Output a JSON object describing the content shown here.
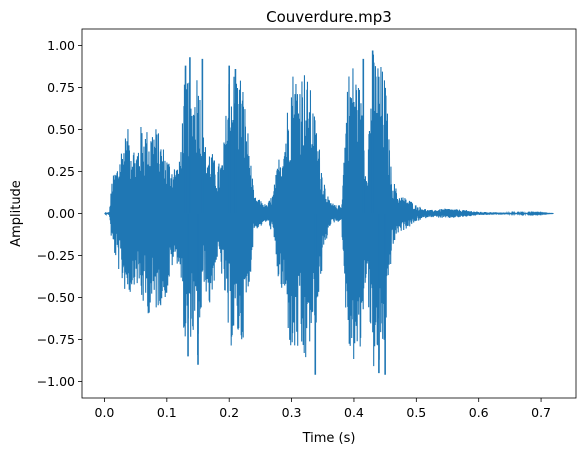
{
  "chart_data": {
    "type": "line",
    "title": "Couverdure.mp3",
    "xlabel": "Time (s)",
    "ylabel": "Amplitude",
    "xlim": [
      -0.036,
      0.756
    ],
    "ylim": [
      -1.098,
      1.098
    ],
    "x_ticks": [
      0.0,
      0.1,
      0.2,
      0.3,
      0.4,
      0.5,
      0.6,
      0.7
    ],
    "x_tick_labels": [
      "0.0",
      "0.1",
      "0.2",
      "0.3",
      "0.4",
      "0.5",
      "0.6",
      "0.7"
    ],
    "y_ticks": [
      -1.0,
      -0.75,
      -0.5,
      -0.25,
      0.0,
      0.25,
      0.5,
      0.75,
      1.0
    ],
    "y_tick_labels": [
      "−1.00",
      "−0.75",
      "−0.50",
      "−0.25",
      "0.00",
      "0.25",
      "0.50",
      "0.75",
      "1.00"
    ],
    "grid": false,
    "legend": "none",
    "series": [
      {
        "color": "#1f77b4",
        "x_start": 0.0,
        "x_end": 0.72,
        "envelope": {
          "t": [
            0.0,
            0.008,
            0.012,
            0.02,
            0.03,
            0.04,
            0.05,
            0.06,
            0.07,
            0.08,
            0.09,
            0.1,
            0.11,
            0.12,
            0.13,
            0.14,
            0.15,
            0.16,
            0.17,
            0.18,
            0.19,
            0.2,
            0.21,
            0.22,
            0.23,
            0.24,
            0.25,
            0.26,
            0.27,
            0.28,
            0.29,
            0.3,
            0.31,
            0.32,
            0.33,
            0.34,
            0.35,
            0.36,
            0.37,
            0.38,
            0.39,
            0.4,
            0.41,
            0.42,
            0.43,
            0.44,
            0.45,
            0.46,
            0.47,
            0.48,
            0.49,
            0.5,
            0.52,
            0.55,
            0.58,
            0.6,
            0.65,
            0.7,
            0.72
          ],
          "max": [
            0.0,
            0.01,
            0.2,
            0.3,
            0.45,
            0.52,
            0.38,
            0.55,
            0.5,
            0.55,
            0.45,
            0.35,
            0.3,
            0.3,
            0.88,
            0.7,
            0.92,
            0.42,
            0.4,
            0.28,
            0.35,
            0.88,
            0.86,
            0.85,
            0.5,
            0.1,
            0.08,
            0.05,
            0.12,
            0.35,
            0.53,
            0.88,
            0.85,
            0.88,
            0.75,
            0.53,
            0.25,
            0.08,
            0.05,
            0.05,
            0.85,
            0.92,
            0.75,
            0.3,
            0.97,
            0.93,
            0.82,
            0.25,
            0.12,
            0.1,
            0.08,
            0.05,
            0.02,
            0.03,
            0.02,
            0.01,
            0.005,
            0.003,
            0.0
          ],
          "min": [
            0.0,
            -0.01,
            -0.2,
            -0.3,
            -0.45,
            -0.5,
            -0.4,
            -0.55,
            -0.6,
            -0.6,
            -0.55,
            -0.5,
            -0.3,
            -0.3,
            -0.85,
            -0.72,
            -0.9,
            -0.42,
            -0.6,
            -0.28,
            -0.4,
            -0.82,
            -0.75,
            -0.8,
            -0.55,
            -0.1,
            -0.08,
            -0.05,
            -0.12,
            -0.45,
            -0.55,
            -0.9,
            -0.85,
            -0.96,
            -0.8,
            -0.66,
            -0.3,
            -0.08,
            -0.05,
            -0.05,
            -0.85,
            -0.9,
            -0.88,
            -0.36,
            -0.94,
            -0.96,
            -0.8,
            -0.25,
            -0.12,
            -0.1,
            -0.08,
            -0.05,
            -0.02,
            -0.03,
            -0.02,
            -0.01,
            -0.005,
            -0.003,
            0.0
          ]
        },
        "spike_points": [
          {
            "x": 0.13,
            "y": 0.88
          },
          {
            "x": 0.137,
            "y": 0.93
          },
          {
            "x": 0.134,
            "y": -0.85
          },
          {
            "x": 0.15,
            "y": -0.9
          },
          {
            "x": 0.157,
            "y": 0.92
          },
          {
            "x": 0.2,
            "y": 0.88
          },
          {
            "x": 0.21,
            "y": 0.86
          },
          {
            "x": 0.338,
            "y": -0.96
          },
          {
            "x": 0.415,
            "y": 0.92
          },
          {
            "x": 0.43,
            "y": 0.97
          },
          {
            "x": 0.44,
            "y": -0.95
          },
          {
            "x": 0.45,
            "y": -0.96
          }
        ]
      }
    ]
  }
}
